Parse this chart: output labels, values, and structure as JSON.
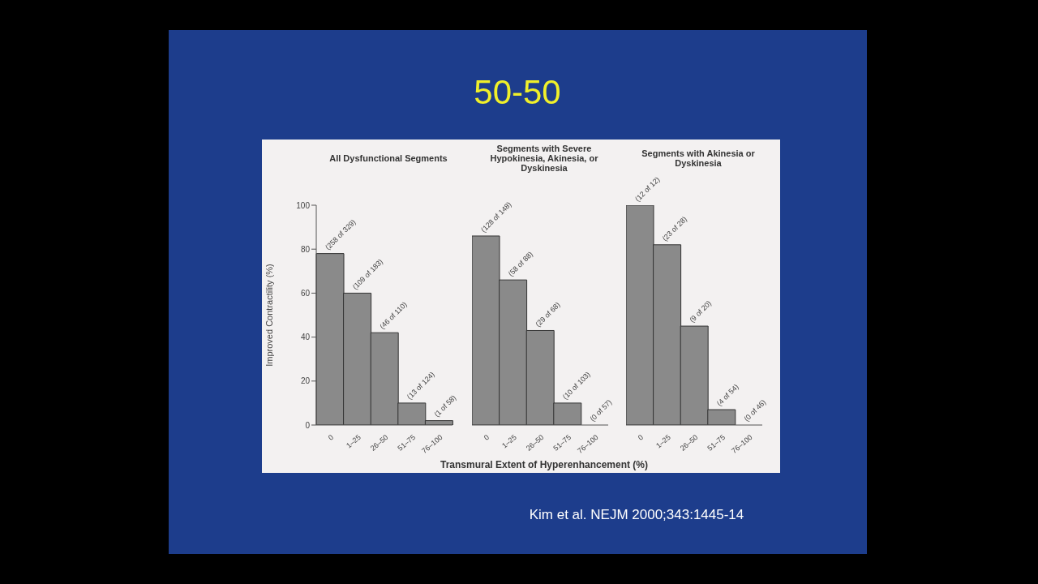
{
  "chart_data": [
    {
      "type": "bar",
      "title": "All Dysfunctional Segments",
      "ylabel": "Improved Contractility (%)",
      "categories": [
        "0",
        "1–25",
        "26–50",
        "51–75",
        "76–100"
      ],
      "series": [
        {
          "color": "#8a8a8a",
          "values": [
            78,
            60,
            42,
            10,
            2
          ]
        }
      ],
      "value_labels": [
        "(258 of 329)",
        "(109 of 183)",
        "(46 of 110)",
        "(13 of 124)",
        "(1 of 58)"
      ],
      "ylim": [
        0,
        100
      ],
      "yticks": [
        0,
        20,
        40,
        60,
        80,
        100
      ],
      "annotations": [
        "50-50",
        "Kim et al. NEJM 2000;343:1445-14"
      ]
    },
    {
      "type": "bar",
      "title": "Segments with Severe Hypokinesia, Akinesia, or Dyskinesia",
      "xlabel": "Transmural Extent of Hyperenhancement (%)",
      "categories": [
        "0",
        "1–25",
        "26–50",
        "51–75",
        "76–100"
      ],
      "series": [
        {
          "color": "#8a8a8a",
          "values": [
            86,
            66,
            43,
            10,
            0
          ]
        }
      ],
      "value_labels": [
        "(128 of 148)",
        "(58 of 88)",
        "(29 of 68)",
        "(10 of 103)",
        "(0 of 57)"
      ],
      "ylim": [
        0,
        100
      ],
      "tick_labels": "x"
    },
    {
      "type": "bar",
      "title": "Segments with Akinesia or Dyskinesia",
      "categories": [
        "0",
        "1–25",
        "26–50",
        "51–75",
        "76–100"
      ],
      "series": [
        {
          "color": "#8a8a8a",
          "values": [
            100,
            82,
            45,
            7,
            0
          ]
        }
      ],
      "value_labels": [
        "(12 of 12)",
        "(23 of 28)",
        "(9 of 20)",
        "(4 of 54)",
        "(0 of 46)"
      ],
      "ylim": [
        0,
        100
      ],
      "tick_labels": "x"
    }
  ]
}
